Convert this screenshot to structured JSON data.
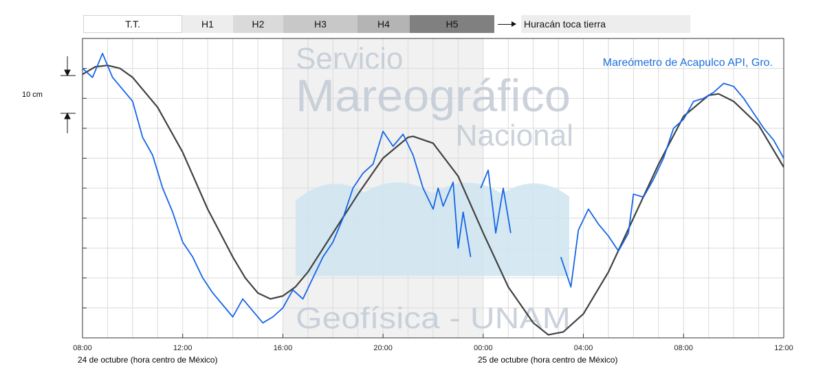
{
  "legend": {
    "items": [
      {
        "label": "T.T.",
        "color": "#ffffff"
      },
      {
        "label": "H1",
        "color": "#ededed"
      },
      {
        "label": "H2",
        "color": "#dadada"
      },
      {
        "label": "H3",
        "color": "#c8c8c8"
      },
      {
        "label": "H4",
        "color": "#b4b4b4"
      },
      {
        "label": "H5",
        "color": "#808080"
      }
    ],
    "arrow_label": "Huracán toca tierra"
  },
  "watermark": {
    "line1": "Servicio",
    "line2": "Mareográfico",
    "line3": "Nacional",
    "line4": "Geofísica - UNAM"
  },
  "chart_data": {
    "type": "line",
    "title": "Mareómetro de Acapulco API, Gro.",
    "title_color": "#1a6fe0",
    "scale_label": "10 cm",
    "x_unit": "hours since 24 oct 08:00",
    "xlim": [
      0,
      28
    ],
    "ylim": [
      -30,
      70
    ],
    "x_ticks": [
      {
        "x": 0,
        "label": "08:00"
      },
      {
        "x": 4,
        "label": "12:00"
      },
      {
        "x": 8,
        "label": "16:00"
      },
      {
        "x": 12,
        "label": "20:00"
      },
      {
        "x": 16,
        "label": "00:00"
      },
      {
        "x": 20,
        "label": "04:00"
      },
      {
        "x": 24,
        "label": "08:00"
      },
      {
        "x": 28,
        "label": "12:00"
      }
    ],
    "date_labels": [
      "24 de octubre (hora centro de México)",
      "25 de octubre (hora centro de México)"
    ],
    "hurricane_shade": {
      "x_start": 8,
      "x_end": 16,
      "color": "#f1f1f1"
    },
    "series": [
      {
        "role": "observed",
        "color": "#1464e6",
        "segments": [
          [
            [
              0,
              60
            ],
            [
              0.4,
              57
            ],
            [
              0.8,
              65
            ],
            [
              1.2,
              57
            ],
            [
              1.6,
              53
            ],
            [
              2,
              49
            ],
            [
              2.4,
              37
            ],
            [
              2.8,
              31
            ],
            [
              3.2,
              20
            ],
            [
              3.6,
              12
            ],
            [
              4,
              2
            ],
            [
              4.4,
              -3
            ],
            [
              4.8,
              -10
            ],
            [
              5.2,
              -15
            ],
            [
              5.6,
              -19
            ],
            [
              6,
              -23
            ],
            [
              6.4,
              -17
            ],
            [
              6.8,
              -21
            ],
            [
              7.2,
              -25
            ],
            [
              7.6,
              -23
            ],
            [
              8,
              -20
            ],
            [
              8.4,
              -14
            ],
            [
              8.8,
              -17
            ],
            [
              9.2,
              -10
            ],
            [
              9.6,
              -3
            ],
            [
              10,
              2
            ],
            [
              10.4,
              10
            ],
            [
              10.8,
              20
            ],
            [
              11.2,
              25
            ],
            [
              11.6,
              28
            ],
            [
              12,
              39
            ],
            [
              12.4,
              34
            ],
            [
              12.8,
              38
            ],
            [
              13.2,
              31
            ],
            [
              13.6,
              20
            ],
            [
              14,
              13
            ],
            [
              14.2,
              20
            ],
            [
              14.4,
              14
            ],
            [
              14.8,
              22
            ],
            [
              15,
              0
            ],
            [
              15.2,
              12
            ],
            [
              15.5,
              -3
            ]
          ],
          [
            [
              15.9,
              20
            ],
            [
              16.2,
              26
            ],
            [
              16.5,
              5
            ],
            [
              16.8,
              20
            ],
            [
              17.1,
              5
            ]
          ],
          [
            [
              19.1,
              -3
            ],
            [
              19.5,
              -13
            ],
            [
              19.8,
              6
            ],
            [
              20.2,
              13
            ],
            [
              20.6,
              8
            ],
            [
              21,
              4
            ],
            [
              21.4,
              -1
            ],
            [
              21.8,
              5
            ],
            [
              22,
              18
            ],
            [
              22.4,
              17
            ],
            [
              22.8,
              23
            ],
            [
              23.2,
              30
            ],
            [
              23.6,
              40
            ],
            [
              24,
              43
            ],
            [
              24.4,
              49
            ],
            [
              24.8,
              50
            ],
            [
              25.2,
              52
            ],
            [
              25.6,
              55
            ],
            [
              26,
              54
            ],
            [
              26.4,
              50
            ],
            [
              26.8,
              45
            ],
            [
              27.2,
              40
            ],
            [
              27.6,
              36
            ],
            [
              28,
              30
            ]
          ]
        ]
      },
      {
        "role": "predicted",
        "color": "#404040",
        "segments": [
          [
            [
              0,
              58
            ],
            [
              0.5,
              60.5
            ],
            [
              1,
              61
            ],
            [
              1.5,
              60
            ],
            [
              2,
              57
            ],
            [
              3,
              47
            ],
            [
              4,
              32
            ],
            [
              5,
              13
            ],
            [
              6,
              -3
            ],
            [
              6.5,
              -10
            ],
            [
              7,
              -15
            ],
            [
              7.5,
              -17
            ],
            [
              8,
              -16
            ],
            [
              8.5,
              -13
            ],
            [
              9,
              -8
            ],
            [
              10,
              5
            ],
            [
              11,
              18
            ],
            [
              12,
              30
            ],
            [
              13,
              37
            ],
            [
              13.2,
              37.3
            ],
            [
              14,
              35
            ],
            [
              15,
              24
            ],
            [
              16,
              5
            ],
            [
              17,
              -13
            ],
            [
              18,
              -25
            ],
            [
              18.6,
              -29
            ],
            [
              19.2,
              -28
            ],
            [
              20,
              -22
            ],
            [
              21,
              -8
            ],
            [
              22,
              10
            ],
            [
              23,
              28
            ],
            [
              24,
              44
            ],
            [
              25,
              51
            ],
            [
              25.4,
              51.5
            ],
            [
              26,
              49
            ],
            [
              27,
              41
            ],
            [
              28,
              27
            ]
          ]
        ]
      }
    ]
  }
}
